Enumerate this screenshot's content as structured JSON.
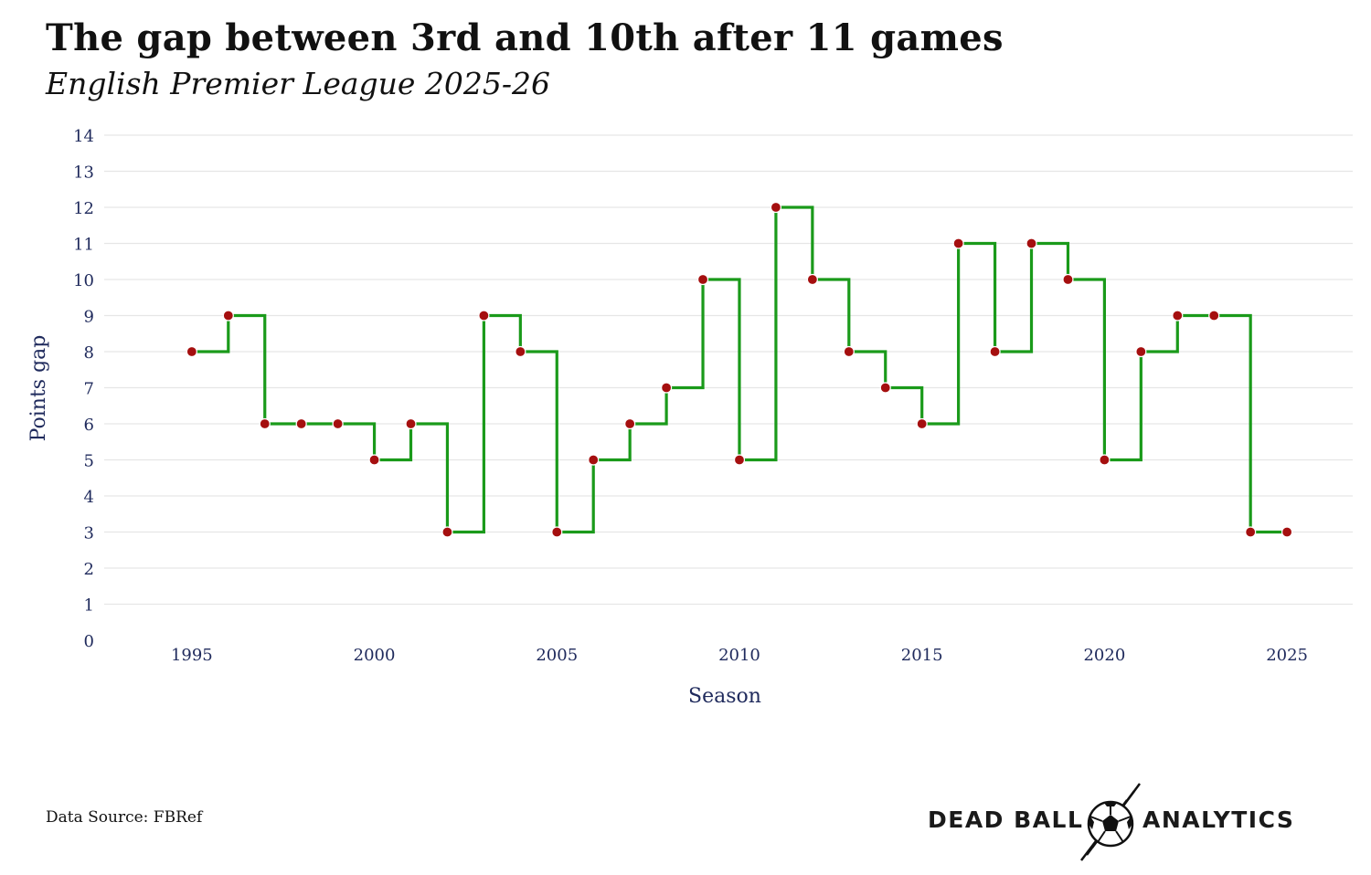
{
  "header": {
    "title": "The gap between 3rd and 10th after 11 games",
    "subtitle": "English Premier League 2025-26"
  },
  "chart_data": {
    "type": "line",
    "step": "post",
    "xlabel": "Season",
    "ylabel": "Points gap",
    "xlim": [
      1992.6,
      2026.8
    ],
    "ylim": [
      0,
      14
    ],
    "xticks": [
      1995,
      2000,
      2005,
      2010,
      2015,
      2020,
      2025
    ],
    "yticks": [
      0,
      1,
      2,
      3,
      4,
      5,
      6,
      7,
      8,
      9,
      10,
      11,
      12,
      13,
      14
    ],
    "grid": true,
    "line_color": "#1a9a1a",
    "marker_color": "#a50f0f",
    "series": [
      {
        "name": "Points gap",
        "x": [
          1995,
          1996,
          1997,
          1998,
          1999,
          2000,
          2001,
          2002,
          2003,
          2004,
          2005,
          2006,
          2007,
          2008,
          2009,
          2010,
          2011,
          2012,
          2013,
          2014,
          2015,
          2016,
          2017,
          2018,
          2019,
          2020,
          2021,
          2022,
          2023,
          2024,
          2025
        ],
        "values": [
          8,
          9,
          6,
          6,
          6,
          5,
          6,
          3,
          9,
          8,
          3,
          5,
          6,
          7,
          10,
          5,
          12,
          10,
          8,
          7,
          6,
          11,
          8,
          11,
          10,
          5,
          8,
          9,
          9,
          3,
          3
        ]
      }
    ]
  },
  "footer": {
    "source": "Data Source: FBRef",
    "brand_left": "DEAD BALL",
    "brand_right": "ANALYTICS"
  }
}
